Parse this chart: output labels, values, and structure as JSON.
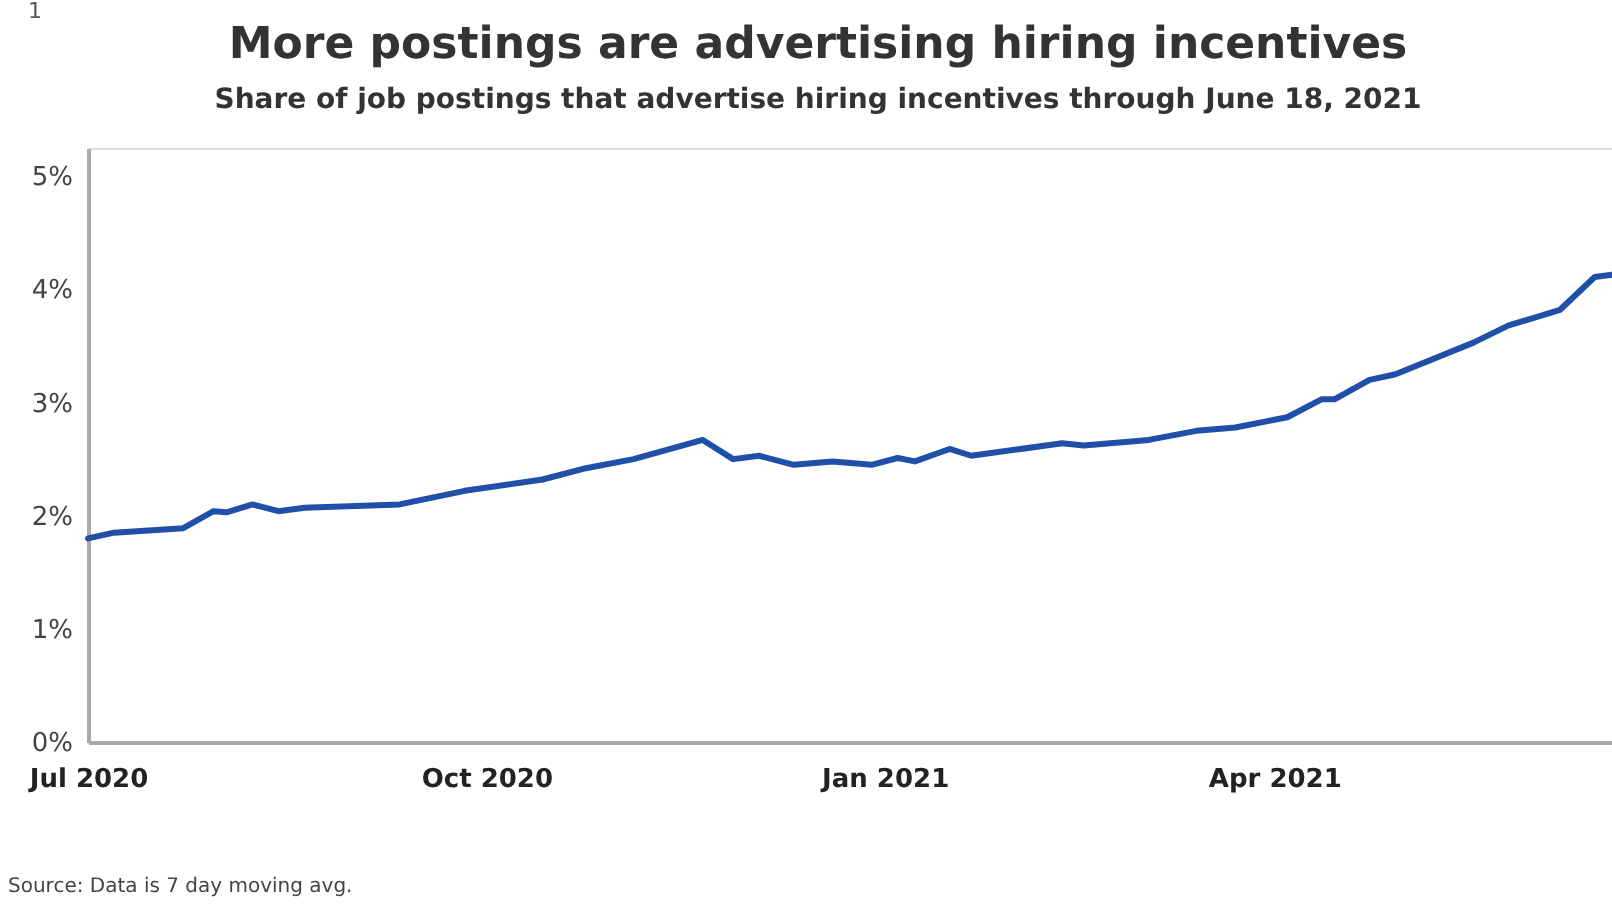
{
  "chart_data": {
    "type": "line",
    "title": "More postings are advertising hiring incentives",
    "subtitle": "Share of job postings that advertise hiring incentives through June 18, 2021",
    "annotations": [
      "1",
      "Source: Data is 7 day moving avg."
    ],
    "x": [
      "2020-07-01",
      "2020-07-07",
      "2020-07-23",
      "2020-07-30",
      "2020-08-02",
      "2020-08-08",
      "2020-08-14",
      "2020-08-20",
      "2020-09-11",
      "2020-09-26",
      "2020-10-14",
      "2020-10-24",
      "2020-11-04",
      "2020-11-20",
      "2020-11-27",
      "2020-12-03",
      "2020-12-11",
      "2020-12-20",
      "2020-12-29",
      "2021-01-04",
      "2021-01-08",
      "2021-01-16",
      "2021-01-21",
      "2021-02-11",
      "2021-02-16",
      "2021-03-03",
      "2021-03-14",
      "2021-03-23",
      "2021-04-04",
      "2021-04-12",
      "2021-04-15",
      "2021-04-23",
      "2021-04-29",
      "2021-05-17",
      "2021-05-25",
      "2021-06-06",
      "2021-06-14",
      "2021-06-18"
    ],
    "series": [
      {
        "color": "#1f4fa8",
        "values": [
          1.8,
          1.85,
          1.89,
          2.04,
          2.03,
          2.1,
          2.04,
          2.07,
          2.1,
          2.22,
          2.32,
          2.42,
          2.5,
          2.67,
          2.5,
          2.53,
          2.45,
          2.48,
          2.45,
          2.51,
          2.48,
          2.59,
          2.53,
          2.64,
          2.62,
          2.67,
          2.75,
          2.78,
          2.87,
          3.03,
          3.03,
          3.2,
          3.25,
          3.53,
          3.68,
          3.82,
          4.11,
          4.13
        ]
      }
    ],
    "xlim": [
      "2020-07-01",
      "2021-06-18"
    ],
    "xticks": [
      {
        "value": "2020-07-01",
        "label": "Jul 2020"
      },
      {
        "value": "2020-10-01",
        "label": "Oct 2020"
      },
      {
        "value": "2021-01-01",
        "label": "Jan 2021"
      },
      {
        "value": "2021-04-01",
        "label": "Apr 2021"
      }
    ],
    "ylim": [
      0,
      5.25
    ],
    "yticks": [
      {
        "value": 0,
        "label": "0%"
      },
      {
        "value": 1,
        "label": "1%"
      },
      {
        "value": 2,
        "label": "2%"
      },
      {
        "value": 3,
        "label": "3%"
      },
      {
        "value": 4,
        "label": "4%"
      },
      {
        "value": 5,
        "label": "5%"
      }
    ],
    "grid": false,
    "line_style": "solid",
    "marker": "none"
  }
}
